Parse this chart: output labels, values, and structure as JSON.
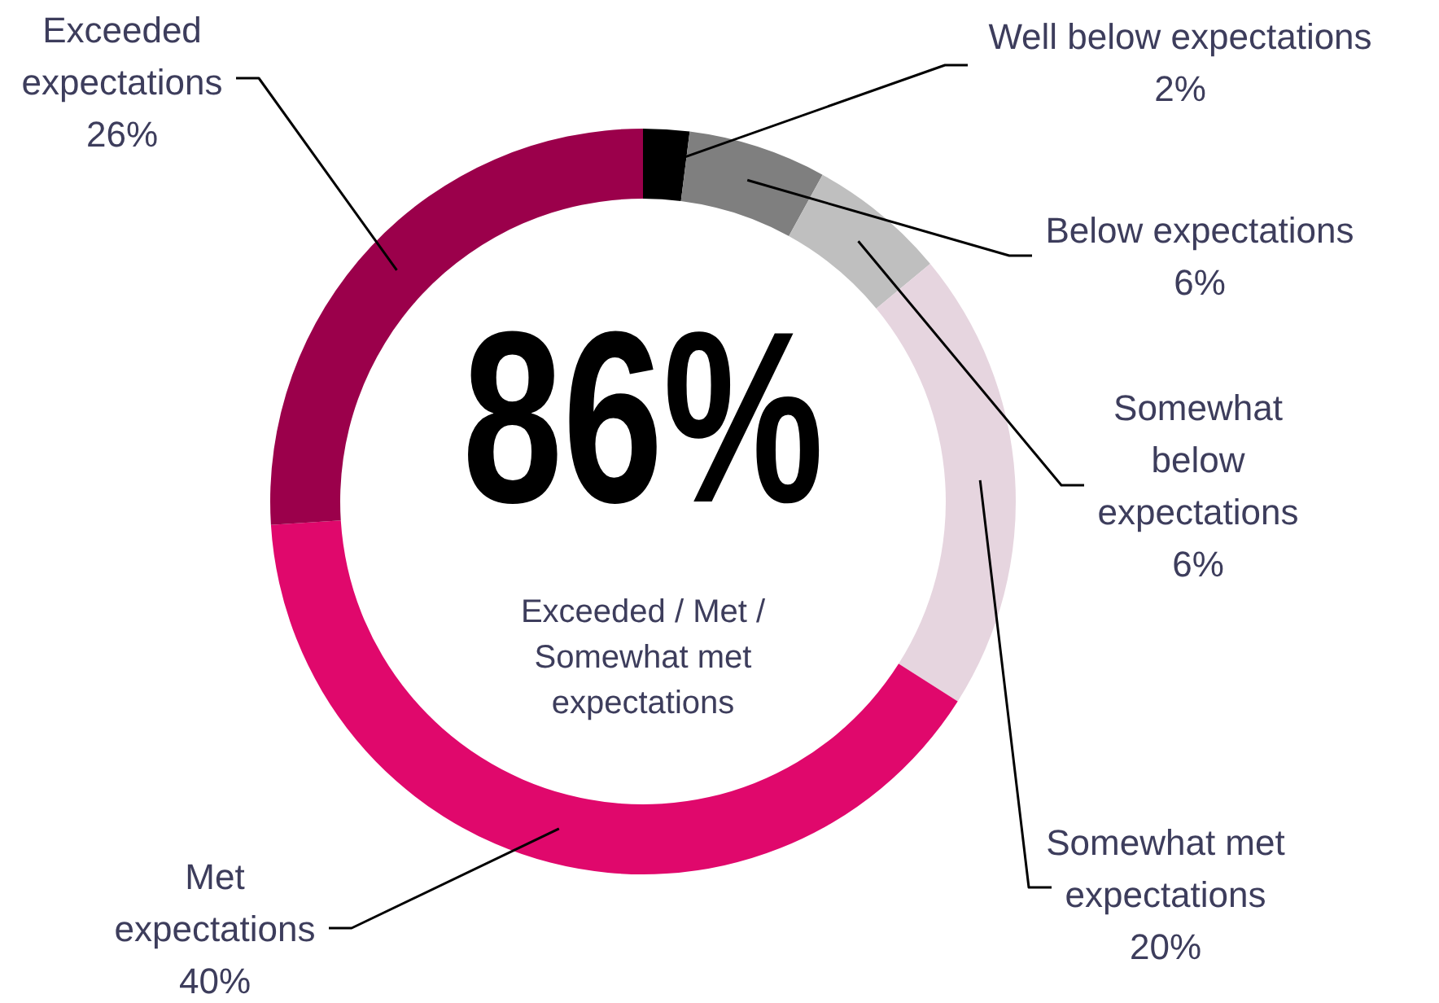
{
  "chart_data": {
    "type": "donut",
    "categories": [
      "Well below expectations",
      "Below expectations",
      "Somewhat below expectations",
      "Somewhat met expectations",
      "Met expectations",
      "Exceeded expectations"
    ],
    "values": [
      2,
      6,
      6,
      20,
      40,
      26
    ],
    "colors": [
      "#000000",
      "#7f7f7f",
      "#bfbfbf",
      "#e6d5df",
      "#e0086c",
      "#9b004b"
    ],
    "value_labels": [
      "2%",
      "6%",
      "6%",
      "20%",
      "40%",
      "26%"
    ],
    "annotations": [
      "86%",
      "Exceeded / Met / Somewhat met expectations"
    ]
  }
}
